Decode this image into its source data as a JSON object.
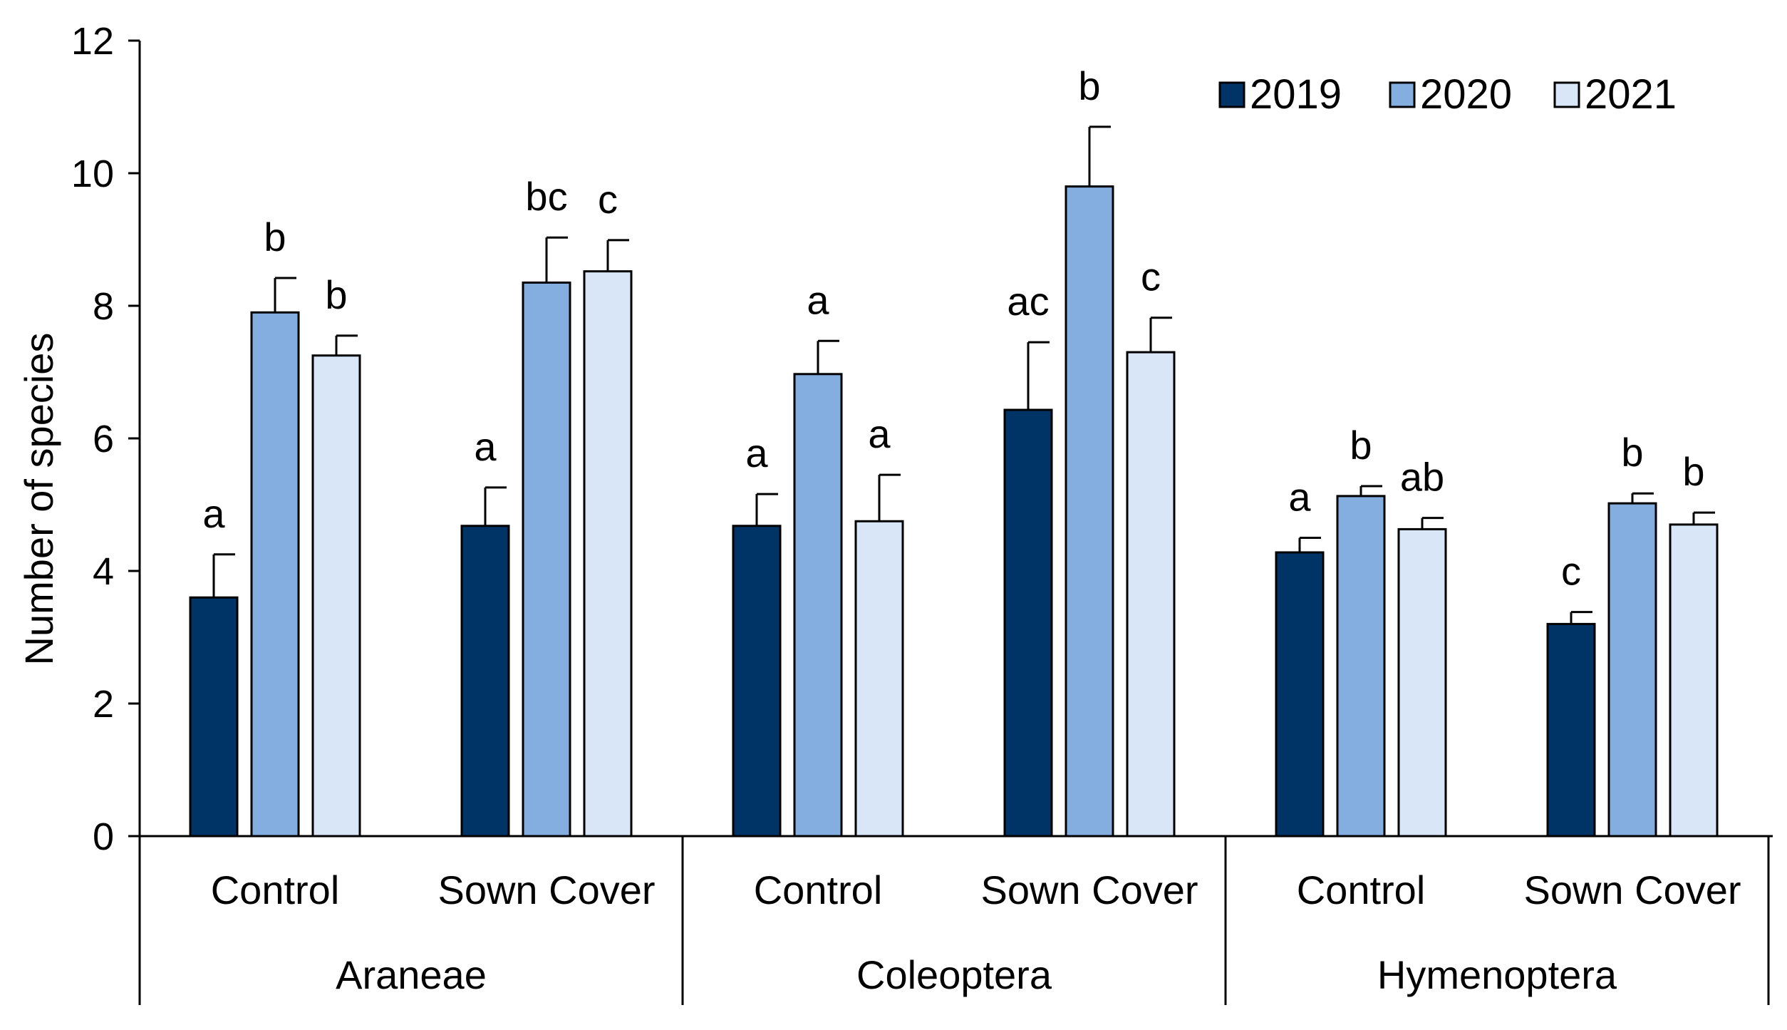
{
  "chart_data": {
    "type": "bar",
    "title": "",
    "ylabel": "Number of species",
    "xlabel": "",
    "ylim": [
      0,
      12
    ],
    "yticks": [
      0,
      2,
      4,
      6,
      8,
      10,
      12
    ],
    "grid": false,
    "legend_position": "top-right",
    "groups": [
      {
        "name": "Araneae",
        "treatments": [
          {
            "name": "Control",
            "values": [
              3.6,
              7.9,
              7.25
            ],
            "errors": [
              0.65,
              0.52,
              0.3
            ],
            "letters": [
              "a",
              "b",
              "b"
            ]
          },
          {
            "name": "Sown Cover",
            "values": [
              4.68,
              8.35,
              8.52
            ],
            "errors": [
              0.58,
              0.68,
              0.47
            ],
            "letters": [
              "a",
              "bc",
              "c"
            ]
          }
        ]
      },
      {
        "name": "Coleoptera",
        "treatments": [
          {
            "name": "Control",
            "values": [
              4.68,
              6.97,
              4.75
            ],
            "errors": [
              0.48,
              0.5,
              0.7
            ],
            "letters": [
              "a",
              "a",
              "a"
            ]
          },
          {
            "name": "Sown Cover",
            "values": [
              6.43,
              9.8,
              7.3
            ],
            "errors": [
              1.02,
              0.9,
              0.52
            ],
            "letters": [
              "ac",
              "b",
              "c"
            ]
          }
        ]
      },
      {
        "name": "Hymenoptera",
        "treatments": [
          {
            "name": "Control",
            "values": [
              4.28,
              5.13,
              4.63
            ],
            "errors": [
              0.22,
              0.15,
              0.17
            ],
            "letters": [
              "a",
              "b",
              "ab"
            ]
          },
          {
            "name": "Sown Cover",
            "values": [
              3.2,
              5.02,
              4.7
            ],
            "errors": [
              0.18,
              0.15,
              0.18
            ],
            "letters": [
              "c",
              "b",
              "b"
            ]
          }
        ]
      }
    ],
    "series": [
      {
        "name": "2019",
        "color": "#003366"
      },
      {
        "name": "2020",
        "color": "#85aee0"
      },
      {
        "name": "2021",
        "color": "#d9e6f7"
      }
    ]
  }
}
